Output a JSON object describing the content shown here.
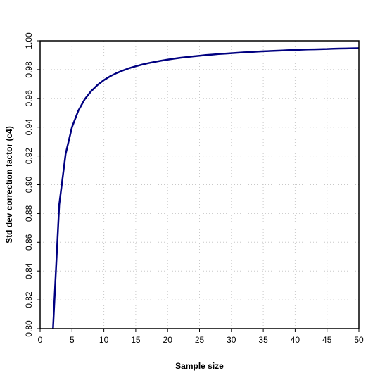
{
  "chart_data": {
    "type": "line",
    "title": "",
    "xlabel": "Sample size",
    "ylabel": "Std dev correction factor (c4)",
    "xlim": [
      0,
      50
    ],
    "ylim": [
      0.8,
      1.0
    ],
    "grid": true,
    "x_ticks": [
      "0",
      "5",
      "10",
      "15",
      "20",
      "25",
      "30",
      "35",
      "40",
      "45",
      "50"
    ],
    "y_ticks": [
      "0.80",
      "0.82",
      "0.84",
      "0.86",
      "0.88",
      "0.90",
      "0.92",
      "0.94",
      "0.96",
      "0.98",
      "1.00"
    ],
    "series": [
      {
        "color": "#000080",
        "x": [
          2,
          3,
          4,
          5,
          6,
          7,
          8,
          9,
          10,
          11,
          12,
          13,
          14,
          15,
          16,
          17,
          18,
          19,
          20,
          21,
          22,
          23,
          24,
          25,
          26,
          27,
          28,
          29,
          30,
          31,
          32,
          33,
          34,
          35,
          36,
          37,
          38,
          39,
          40,
          41,
          42,
          43,
          44,
          45,
          46,
          47,
          48,
          49,
          50
        ],
        "values": [
          0.7979,
          0.8862,
          0.9213,
          0.94,
          0.9515,
          0.9594,
          0.965,
          0.9693,
          0.9727,
          0.9754,
          0.9776,
          0.9794,
          0.981,
          0.9823,
          0.9835,
          0.9845,
          0.9854,
          0.9862,
          0.9869,
          0.9876,
          0.9882,
          0.9887,
          0.9892,
          0.9896,
          0.9901,
          0.9904,
          0.9908,
          0.9911,
          0.9914,
          0.9917,
          0.992,
          0.9922,
          0.9925,
          0.9927,
          0.9929,
          0.9931,
          0.9933,
          0.9935,
          0.9936,
          0.9938,
          0.994,
          0.9941,
          0.9942,
          0.9943,
          0.9945,
          0.9946,
          0.9947,
          0.9948,
          0.9949
        ]
      }
    ]
  }
}
